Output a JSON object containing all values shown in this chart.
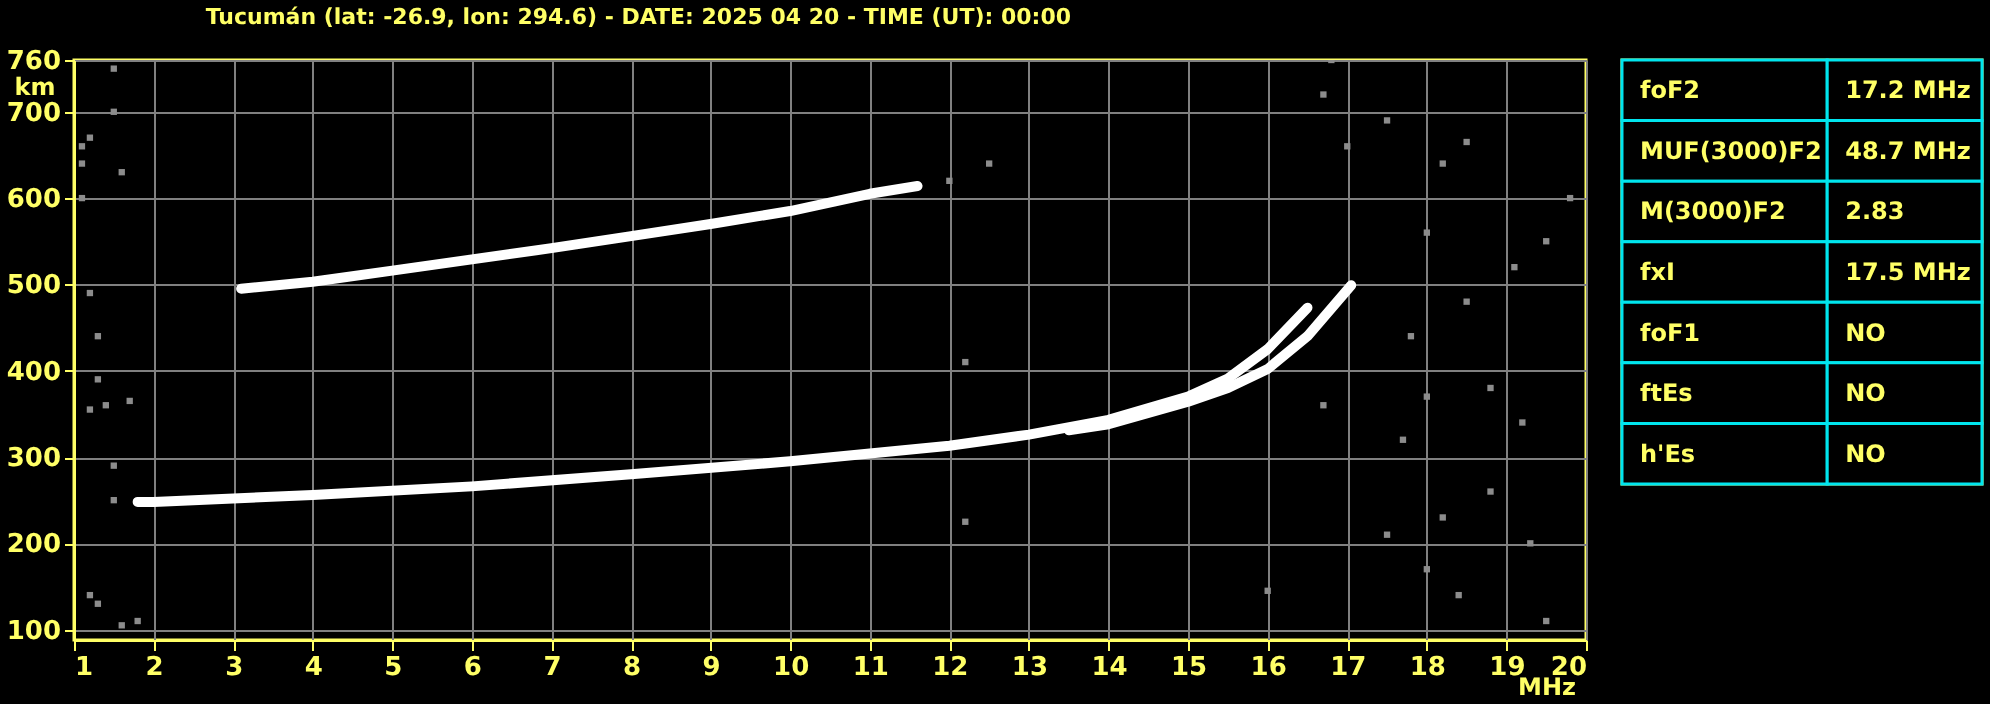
{
  "chart_data": [
    {
      "type": "scatter",
      "title": "Tucumán (lat: -26.9, lon: 294.6) - DATE: 2025 04 20 - TIME (UT): 00:00",
      "xlabel": "MHz",
      "ylabel": "km",
      "xlim": [
        1,
        20
      ],
      "ylim": [
        88,
        760
      ],
      "xticks": [
        1,
        2,
        3,
        4,
        5,
        6,
        7,
        8,
        9,
        10,
        11,
        12,
        13,
        14,
        15,
        16,
        17,
        18,
        19,
        20
      ],
      "yticks": [
        100,
        200,
        300,
        400,
        500,
        600,
        700,
        760
      ],
      "grid": true,
      "series": [
        {
          "type": "scatter",
          "marker": "square",
          "color": "#8c8c8c",
          "x": [
            1.1,
            1.1,
            1.1,
            1.2,
            1.5,
            1.5,
            1.6,
            1.2,
            1.3,
            1.2,
            1.3,
            1.5,
            1.5,
            1.2,
            1.3,
            1.6,
            1.8,
            1.4,
            1.7,
            12.0,
            12.2,
            12.2,
            12.5,
            16.8,
            16.7,
            17.0,
            17.5,
            18.2,
            18.5,
            18.0,
            17.8,
            18.5,
            19.1,
            19.5,
            18.0,
            18.8,
            19.2,
            17.7,
            18.2,
            18.8,
            19.3,
            18.0,
            18.4,
            19.5,
            17.5,
            16.0,
            19.8,
            16.7
          ],
          "values": [
            600,
            640,
            660,
            670,
            750,
            700,
            630,
            490,
            440,
            355,
            390,
            290,
            250,
            140,
            130,
            105,
            110,
            360,
            365,
            620,
            410,
            225,
            640,
            760,
            720,
            660,
            690,
            640,
            665,
            560,
            440,
            480,
            520,
            550,
            370,
            380,
            340,
            320,
            230,
            260,
            200,
            170,
            140,
            110,
            210,
            145,
            600,
            360
          ]
        },
        {
          "type": "line",
          "color": "#ffffff",
          "x": [
            1.8,
            2,
            4,
            6,
            8,
            10,
            12,
            13,
            14,
            15,
            15.5,
            16,
            16.5
          ],
          "values": [
            248,
            248,
            256,
            266,
            280,
            295,
            313,
            326,
            343,
            370,
            391,
            425,
            473
          ]
        },
        {
          "type": "line",
          "color": "#ffffff",
          "x": [
            13.5,
            14,
            15,
            15.5,
            16,
            16.5,
            17.05
          ],
          "values": [
            331,
            338,
            364,
            380,
            402,
            440,
            499
          ]
        },
        {
          "type": "line",
          "color": "#ffffff",
          "x": [
            3.1,
            4,
            5,
            6,
            7,
            8,
            9,
            10,
            11,
            11.6
          ],
          "values": [
            495,
            503,
            516,
            529,
            542,
            556,
            570,
            585,
            605,
            614
          ]
        }
      ]
    },
    {
      "type": "other",
      "annotations": [
        "foF2",
        "17.2 MHz",
        "MUF(3000)F2",
        "48.7 MHz",
        "M(3000)F2",
        "2.83",
        "fxI",
        "17.5 MHz",
        "foF1",
        "NO",
        "ftEs",
        "NO",
        "h'Es",
        "NO"
      ]
    }
  ]
}
